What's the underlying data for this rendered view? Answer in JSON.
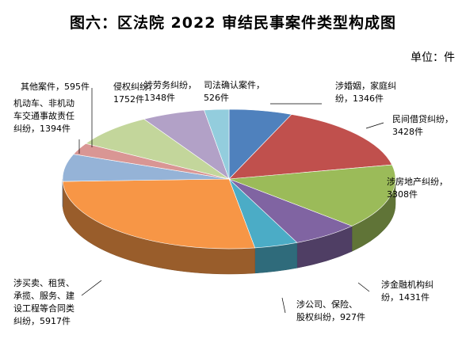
{
  "chart_data": {
    "type": "pie",
    "title": "图六：区法院 2022 审结民事案件类型构成图",
    "unit": "单位：件",
    "series": [
      {
        "name": "涉婚姻，家庭纠纷",
        "value": 1346,
        "value_label": "1346件",
        "label_lines": [
          "涉婚姻，家庭纠",
          "纷，1346件"
        ],
        "color": "#4f81bd"
      },
      {
        "name": "民间借贷纠纷",
        "value": 3428,
        "value_label": "3428件",
        "label_lines": [
          "民间借贷纠纷，",
          "3428件"
        ],
        "color": "#c0504d"
      },
      {
        "name": "涉房地产纠纷",
        "value": 3308,
        "value_label": "3308件",
        "label_lines": [
          "涉房地产纠纷，",
          "3308件"
        ],
        "color": "#9bbb59"
      },
      {
        "name": "涉金融机构纠纷",
        "value": 1431,
        "value_label": "1431件",
        "label_lines": [
          "涉金融机构纠",
          "纷，1431件"
        ],
        "color": "#8064a2"
      },
      {
        "name": "涉公司、保险、股权纠纷",
        "value": 927,
        "value_label": "927件",
        "label_lines": [
          "涉公司、保险、",
          "股权纠纷，927件"
        ],
        "color": "#4bacc6"
      },
      {
        "name": "涉买卖、租赁、承揽、服务、建设工程等合同类纠纷",
        "value": 5917,
        "value_label": "5917件",
        "label_lines": [
          "涉买卖、租赁、",
          "承揽、服务、建",
          "设工程等合同类",
          "纠纷，5917件"
        ],
        "color": "#f79646"
      },
      {
        "name": "机动车、非机动车交通事故责任纠纷",
        "value": 1394,
        "value_label": "1394件",
        "label_lines": [
          "机动车、非机动",
          "车交通事故责任",
          "纠纷，1394件"
        ],
        "color": "#95b3d7"
      },
      {
        "name": "其他案件",
        "value": 595,
        "value_label": "595件",
        "label_lines": [
          "其他案件，595件"
        ],
        "color": "#d99694"
      },
      {
        "name": "侵权纠纷",
        "value": 1752,
        "value_label": "1752件",
        "label_lines": [
          "侵权纠纷，",
          "1752件"
        ],
        "color": "#c3d69b"
      },
      {
        "name": "涉劳务纠纷",
        "value": 1348,
        "value_label": "1348件",
        "label_lines": [
          "涉劳务纠纷，",
          "1348件"
        ],
        "color": "#b2a1c7"
      },
      {
        "name": "司法确认案件",
        "value": 526,
        "value_label": "526件",
        "label_lines": [
          "司法确认案件，",
          "526件"
        ],
        "color": "#93cddd"
      }
    ]
  }
}
